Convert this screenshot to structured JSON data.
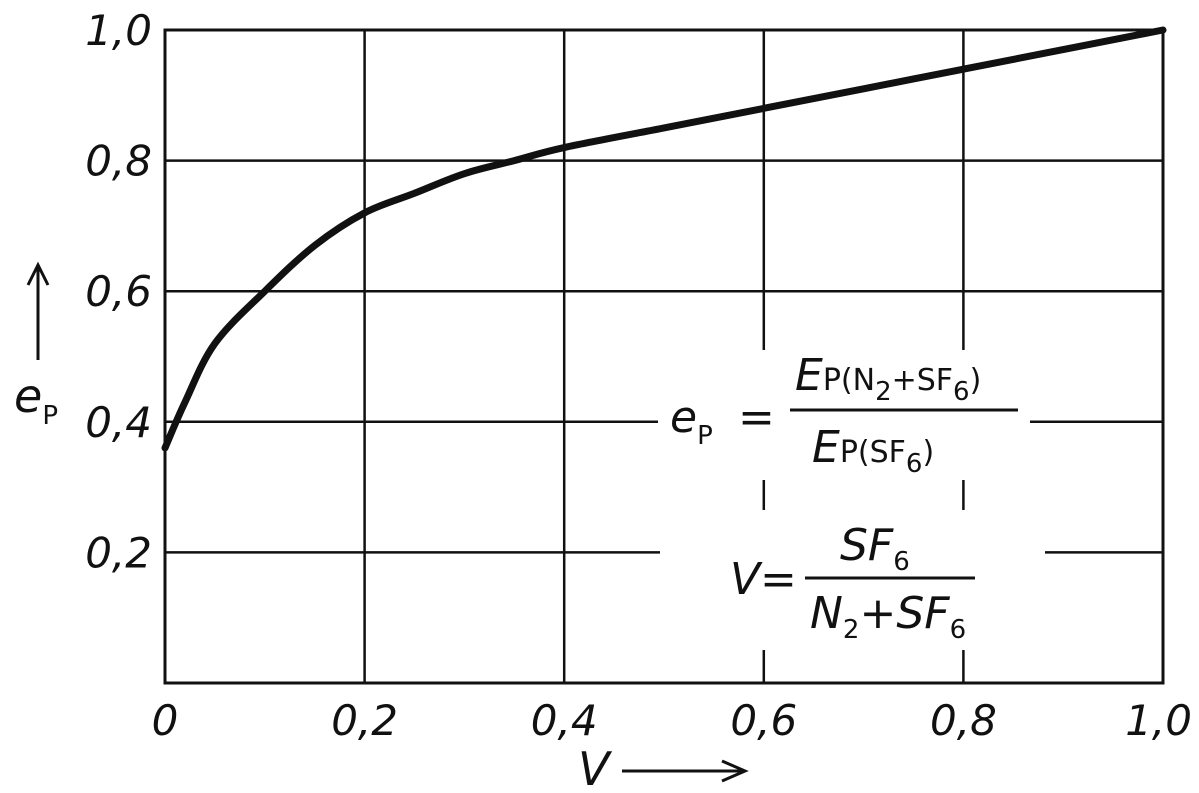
{
  "chart_data": {
    "type": "line",
    "title": "",
    "xlabel": "V",
    "ylabel": "e_P",
    "xlim": [
      0,
      1.0
    ],
    "ylim": [
      0,
      1.0
    ],
    "grid": true,
    "x_ticks": [
      "0",
      "0,2",
      "0,4",
      "0,6",
      "0,8",
      "1,0"
    ],
    "y_ticks": [
      "0,2",
      "0,4",
      "0,6",
      "0,8",
      "1,0"
    ],
    "series": [
      {
        "x": [
          0,
          0.02,
          0.05,
          0.1,
          0.15,
          0.2,
          0.25,
          0.3,
          0.35,
          0.4,
          0.5,
          0.6,
          0.7,
          0.8,
          0.9,
          1.0
        ],
        "y": [
          0.36,
          0.43,
          0.52,
          0.6,
          0.67,
          0.72,
          0.75,
          0.78,
          0.8,
          0.82,
          0.85,
          0.88,
          0.91,
          0.94,
          0.97,
          1.0
        ]
      }
    ],
    "annotations": {
      "ep_formula": {
        "lhs": "e",
        "lhs_sub": "P",
        "eq": "=",
        "num_main": "E",
        "num_sub": "P(N",
        "num_sub2": "2",
        "num_rest": "+SF",
        "num_rest_sub": "6",
        "num_close": ")",
        "den_main": "E",
        "den_sub": "P(SF",
        "den_sub2": "6",
        "den_close": ")"
      },
      "v_formula": {
        "lhs": "V",
        "eq": "=",
        "num": "SF",
        "num_sub": "6",
        "den_a": "N",
        "den_a_sub": "2",
        "den_b": "+SF",
        "den_b_sub": "6"
      }
    }
  }
}
